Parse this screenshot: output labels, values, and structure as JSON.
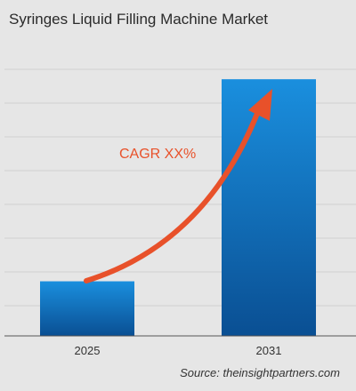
{
  "chart_data": {
    "type": "bar",
    "title": "Syringes Liquid Filling Machine Market",
    "categories": [
      "2025",
      "2031"
    ],
    "values": [
      1,
      4.7
    ],
    "ylim": [
      0,
      5.5
    ],
    "grid": true,
    "annotation": "CAGR XX%",
    "source": "Source: theinsightpartners.com"
  },
  "colors": {
    "background": "#e6e6e6",
    "bar_top": "#1a8fde",
    "bar_bottom": "#0a4f93",
    "arrow": "#e8512a",
    "grid": "#d0d0d0",
    "axis": "#555555"
  }
}
